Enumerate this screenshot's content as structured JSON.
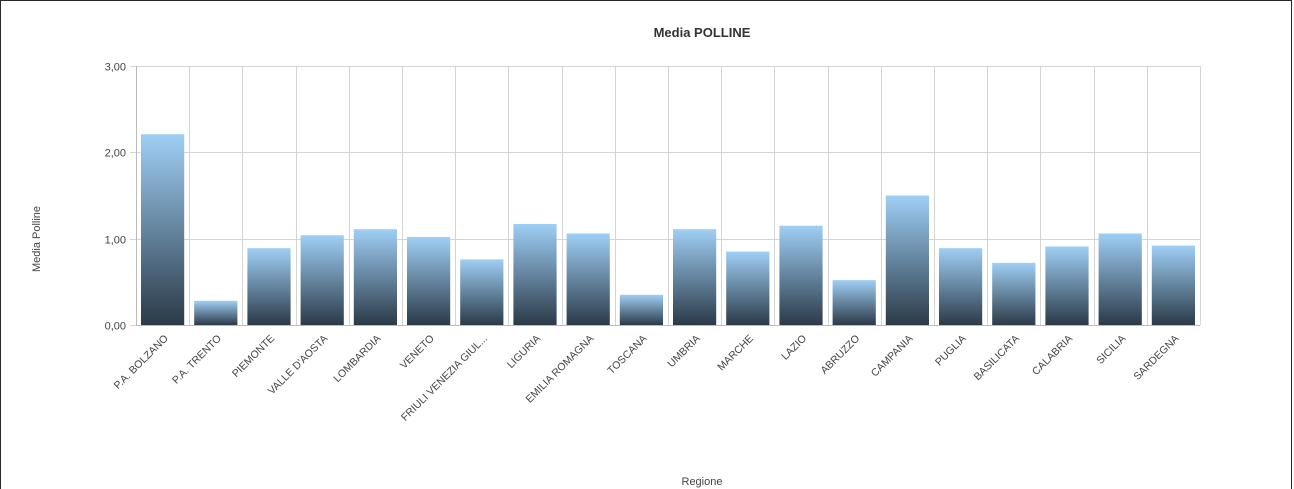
{
  "chart_data": {
    "type": "bar",
    "title": "Media POLLINE",
    "xlabel": "Regione",
    "ylabel": "Media Polline",
    "ylim": [
      0,
      3
    ],
    "yticks": [
      "0,00",
      "1,00",
      "2,00",
      "3,00"
    ],
    "grid": true,
    "categories": [
      "P.A. BOLZANO",
      "P.A. TRENTO",
      "PIEMONTE",
      "VALLE D'AOSTA",
      "LOMBARDIA",
      "VENETO",
      "FRIULI VENEZIA GIUL...",
      "LIGURIA",
      "EMILIA ROMAGNA",
      "TOSCANA",
      "UMBRIA",
      "MARCHE",
      "LAZIO",
      "ABRUZZO",
      "CAMPANIA",
      "PUGLIA",
      "BASILICATA",
      "CALABRIA",
      "SICILIA",
      "SARDEGNA"
    ],
    "values": [
      2.21,
      0.28,
      0.89,
      1.04,
      1.11,
      1.02,
      0.76,
      1.17,
      1.06,
      0.35,
      1.11,
      0.85,
      1.15,
      0.52,
      1.5,
      0.89,
      0.72,
      0.91,
      1.06,
      0.92
    ],
    "colors": {
      "bar_top": "#9fcff5",
      "bar_bottom": "#2b3a48",
      "grid": "#d4d4d4",
      "axis": "#bbbbbb"
    }
  }
}
